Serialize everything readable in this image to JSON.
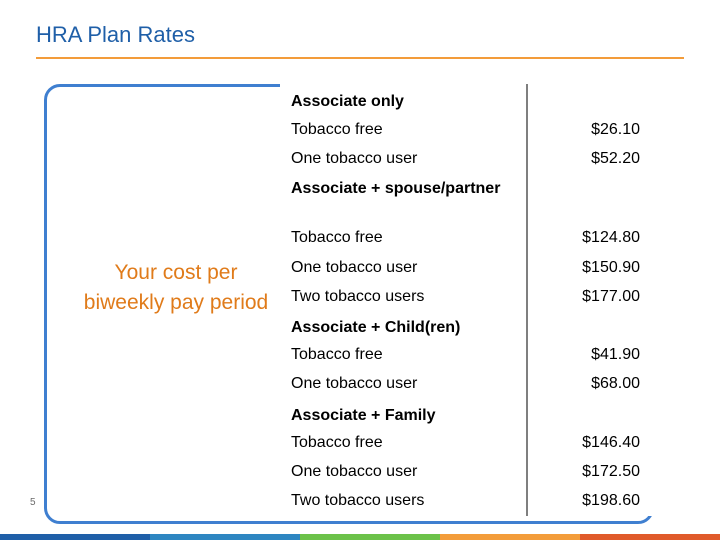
{
  "title": "HRA Plan Rates",
  "side_label": "Your cost per biweekly pay period",
  "slide_number": "5",
  "rows": [
    {
      "label": "Associate only",
      "value": ""
    },
    {
      "label": "Tobacco free",
      "value": "$26.10"
    },
    {
      "label": "One tobacco user",
      "value": "$52.20"
    },
    {
      "label": "Associate + spouse/partner",
      "value": ""
    },
    {
      "label": "Tobacco free",
      "value": "$124.80"
    },
    {
      "label": "One tobacco user",
      "value": "$150.90"
    },
    {
      "label": "Two tobacco users",
      "value": "$177.00"
    },
    {
      "label": "Associate + Child(ren)",
      "value": ""
    },
    {
      "label": "Tobacco free",
      "value": "$41.90"
    },
    {
      "label": "One tobacco user",
      "value": "$68.00"
    },
    {
      "label": "Associate + Family",
      "value": ""
    },
    {
      "label": "Tobacco free",
      "value": "$146.40"
    },
    {
      "label": "One tobacco user",
      "value": "$172.50"
    },
    {
      "label": "Two tobacco users",
      "value": "$198.60"
    }
  ],
  "colors": {
    "title": "#1f5fa8",
    "accent_rule": "#f39c3a",
    "frame": "#3f7fd0",
    "side_label": "#e07b1a",
    "bottom_bar": [
      "#1f5fa8",
      "#2e86c1",
      "#6cc24a",
      "#f39c3a",
      "#e05a2a"
    ]
  }
}
